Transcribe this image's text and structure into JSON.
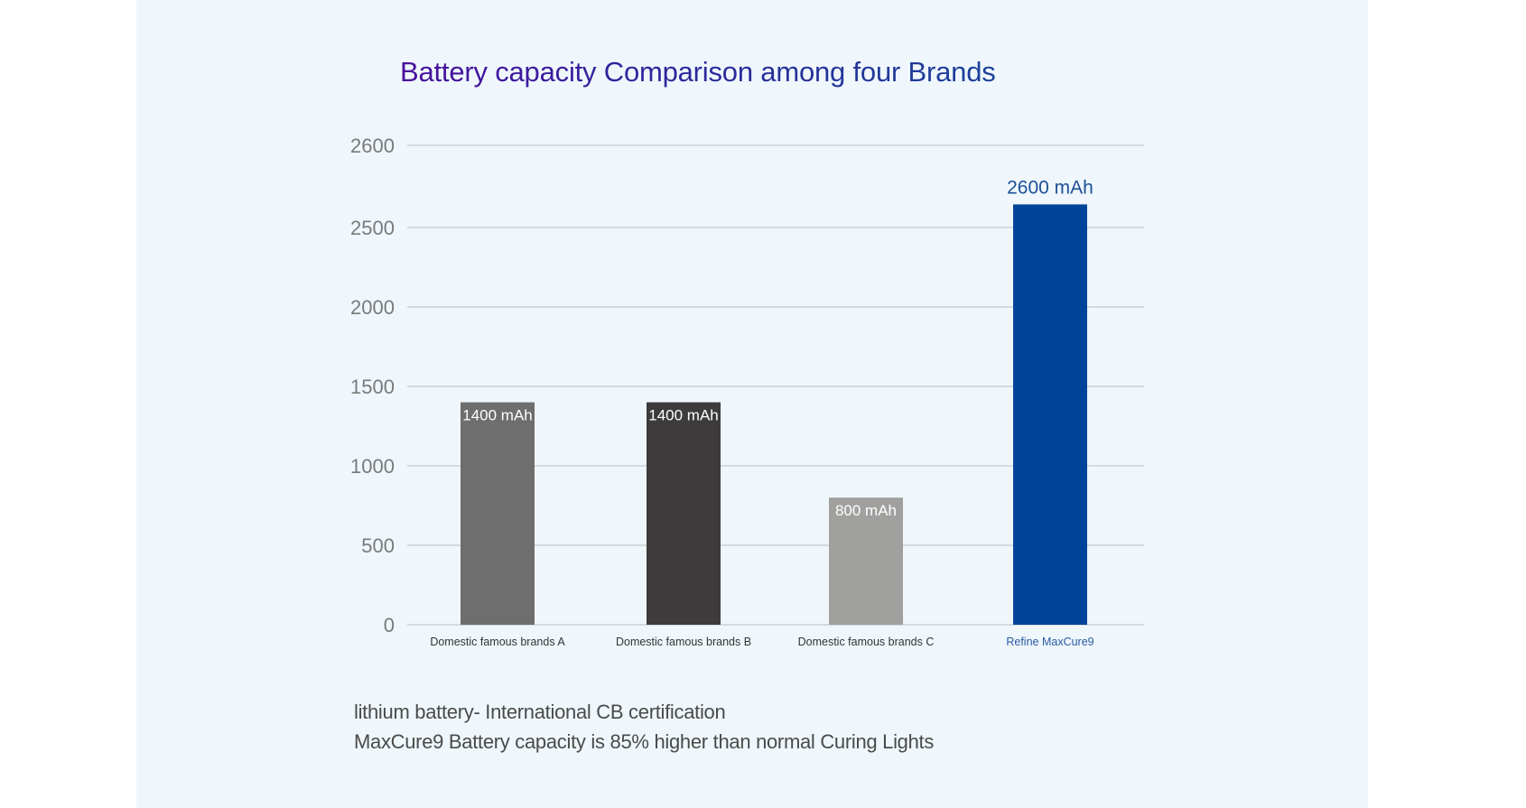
{
  "chart_data": {
    "type": "bar",
    "title": "Battery capacity Comparison among four Brands",
    "xlabel": "",
    "ylabel": "",
    "ylim": [
      0,
      2600
    ],
    "grid": true,
    "yticks": [
      0,
      500,
      1000,
      1500,
      2000,
      2500,
      2600
    ],
    "ytick_labels": [
      "0",
      "500",
      "1000",
      "1500",
      "2000",
      "2500",
      "2600"
    ],
    "categories": [
      "Domestic famous brands A",
      "Domestic famous brands B",
      "Domestic famous brands C",
      "Refine MaxCure9"
    ],
    "values": [
      1400,
      1400,
      800,
      2600
    ],
    "unit": "mAh",
    "data_labels": [
      "1400 mAh",
      "1400 mAh",
      "800 mAh",
      "2600 mAh"
    ],
    "bar_colors": [
      "#6f6e6f",
      "#3d3b3c",
      "#a0a09e",
      "#00449a"
    ],
    "label_colors": [
      "#ffffff",
      "#ffffff",
      "#ffffff",
      "#1d4f96"
    ],
    "category_label_colors": [
      "#333333",
      "#333333",
      "#333333",
      "#2b5aa3"
    ],
    "gridline_color": "#c4c8cc",
    "tick_label_color": "#7a7a7a"
  },
  "notes": [
    "lithium battery- International CB certification",
    "MaxCure9 Battery capacity is 85% higher than normal Curing Lights"
  ]
}
